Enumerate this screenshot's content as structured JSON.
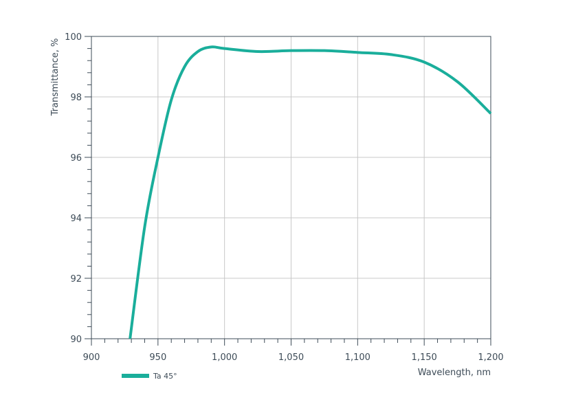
{
  "chart_data": {
    "type": "line",
    "x_label": "Wavelength, nm",
    "y_label": "Transmittance, %",
    "series": [
      {
        "name": "Ta 45°",
        "color": "#1aae9b",
        "x": [
          929,
          940,
          950,
          960,
          970,
          980,
          990,
          1000,
          1025,
          1050,
          1075,
          1100,
          1125,
          1150,
          1175,
          1200
        ],
        "values": [
          90,
          93.7,
          96.0,
          97.9,
          99.0,
          99.5,
          99.65,
          99.6,
          99.5,
          99.53,
          99.53,
          99.47,
          99.4,
          99.15,
          98.5,
          97.45
        ]
      }
    ],
    "xlim": [
      900,
      1200
    ],
    "xticks": [
      900,
      950,
      {
        "value": 1000,
        "label": "1,000"
      },
      {
        "value": 1050,
        "label": "1,050"
      },
      {
        "value": 1100,
        "label": "1,100"
      },
      {
        "value": 1150,
        "label": "1,150"
      },
      {
        "value": 1200,
        "label": "1,200"
      }
    ],
    "ylim": [
      90,
      100
    ],
    "yticks": [
      90,
      92,
      94,
      96,
      98,
      100
    ],
    "grid": true,
    "legend": "bottom-left"
  }
}
